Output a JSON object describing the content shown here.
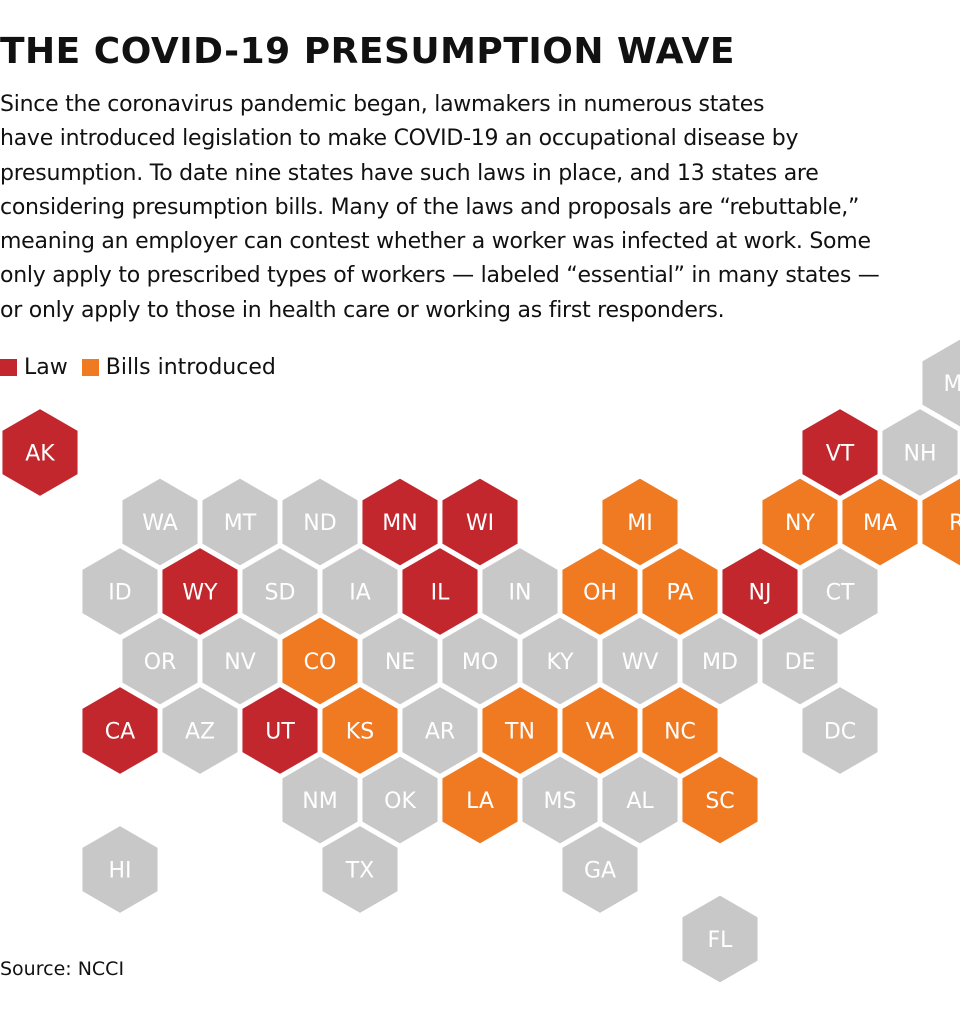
{
  "title": "THE COVID-19 PRESUMPTION WAVE",
  "intro_lines": [
    "Since the coronavirus pandemic began, lawmakers in numerous states",
    "have introduced legislation to make COVID-19 an occupational disease by",
    "presumption. To date nine states have such laws in place, and 13 states are",
    "considering presumption bills. Many of the laws and proposals are “rebuttable,”",
    "meaning an employer can contest whether a worker was infected at work. Some",
    "only apply to prescribed types of workers — labeled “essential” in many states —",
    "or only apply to those in health care or working as first responders."
  ],
  "legend": [
    {
      "key": "law",
      "label": "Law",
      "color": "#c1272d"
    },
    {
      "key": "bills",
      "label": "Bills introduced",
      "color": "#f07a22"
    }
  ],
  "colors": {
    "law": "#c1272d",
    "bills": "#f07a22",
    "none": "#c8c8c8"
  },
  "source": "Source: NCCI",
  "map_data": {
    "type": "hex-tile-map",
    "states": [
      {
        "code": "ME",
        "row": 0,
        "col": 11,
        "status": "none"
      },
      {
        "code": "AK",
        "row": 1,
        "col": 0,
        "status": "law"
      },
      {
        "code": "VT",
        "row": 1,
        "col": 10,
        "status": "law"
      },
      {
        "code": "NH",
        "row": 1,
        "col": 11,
        "status": "none"
      },
      {
        "code": "WA",
        "row": 2,
        "col": 1,
        "status": "none"
      },
      {
        "code": "MT",
        "row": 2,
        "col": 2,
        "status": "none"
      },
      {
        "code": "ND",
        "row": 2,
        "col": 3,
        "status": "none"
      },
      {
        "code": "MN",
        "row": 2,
        "col": 4,
        "status": "law"
      },
      {
        "code": "WI",
        "row": 2,
        "col": 5,
        "status": "law"
      },
      {
        "code": "MI",
        "row": 2,
        "col": 7,
        "status": "bills"
      },
      {
        "code": "NY",
        "row": 2,
        "col": 9,
        "status": "bills"
      },
      {
        "code": "MA",
        "row": 2,
        "col": 10,
        "status": "bills"
      },
      {
        "code": "RI",
        "row": 2,
        "col": 11,
        "status": "bills"
      },
      {
        "code": "ID",
        "row": 3,
        "col": 1,
        "status": "none"
      },
      {
        "code": "WY",
        "row": 3,
        "col": 2,
        "status": "law"
      },
      {
        "code": "SD",
        "row": 3,
        "col": 3,
        "status": "none"
      },
      {
        "code": "IA",
        "row": 3,
        "col": 4,
        "status": "none"
      },
      {
        "code": "IL",
        "row": 3,
        "col": 5,
        "status": "law"
      },
      {
        "code": "IN",
        "row": 3,
        "col": 6,
        "status": "none"
      },
      {
        "code": "OH",
        "row": 3,
        "col": 7,
        "status": "bills"
      },
      {
        "code": "PA",
        "row": 3,
        "col": 8,
        "status": "bills"
      },
      {
        "code": "NJ",
        "row": 3,
        "col": 9,
        "status": "law"
      },
      {
        "code": "CT",
        "row": 3,
        "col": 10,
        "status": "none"
      },
      {
        "code": "OR",
        "row": 4,
        "col": 1,
        "status": "none"
      },
      {
        "code": "NV",
        "row": 4,
        "col": 2,
        "status": "none"
      },
      {
        "code": "CO",
        "row": 4,
        "col": 3,
        "status": "bills"
      },
      {
        "code": "NE",
        "row": 4,
        "col": 4,
        "status": "none"
      },
      {
        "code": "MO",
        "row": 4,
        "col": 5,
        "status": "none"
      },
      {
        "code": "KY",
        "row": 4,
        "col": 6,
        "status": "none"
      },
      {
        "code": "WV",
        "row": 4,
        "col": 7,
        "status": "none"
      },
      {
        "code": "MD",
        "row": 4,
        "col": 8,
        "status": "none"
      },
      {
        "code": "DE",
        "row": 4,
        "col": 9,
        "status": "none"
      },
      {
        "code": "CA",
        "row": 5,
        "col": 1,
        "status": "law"
      },
      {
        "code": "AZ",
        "row": 5,
        "col": 2,
        "status": "none"
      },
      {
        "code": "UT",
        "row": 5,
        "col": 3,
        "status": "law"
      },
      {
        "code": "KS",
        "row": 5,
        "col": 4,
        "status": "bills"
      },
      {
        "code": "AR",
        "row": 5,
        "col": 5,
        "status": "none"
      },
      {
        "code": "TN",
        "row": 5,
        "col": 6,
        "status": "bills"
      },
      {
        "code": "VA",
        "row": 5,
        "col": 7,
        "status": "bills"
      },
      {
        "code": "NC",
        "row": 5,
        "col": 8,
        "status": "bills"
      },
      {
        "code": "DC",
        "row": 5,
        "col": 10,
        "status": "none"
      },
      {
        "code": "NM",
        "row": 6,
        "col": 3,
        "status": "none"
      },
      {
        "code": "OK",
        "row": 6,
        "col": 4,
        "status": "none"
      },
      {
        "code": "LA",
        "row": 6,
        "col": 5,
        "status": "bills"
      },
      {
        "code": "MS",
        "row": 6,
        "col": 6,
        "status": "none"
      },
      {
        "code": "AL",
        "row": 6,
        "col": 7,
        "status": "none"
      },
      {
        "code": "SC",
        "row": 6,
        "col": 8,
        "status": "bills"
      },
      {
        "code": "HI",
        "row": 7,
        "col": 1,
        "status": "none"
      },
      {
        "code": "TX",
        "row": 7,
        "col": 4,
        "status": "none"
      },
      {
        "code": "GA",
        "row": 7,
        "col": 7,
        "status": "none"
      },
      {
        "code": "FL",
        "row": 8,
        "col": 8,
        "status": "none"
      }
    ]
  }
}
